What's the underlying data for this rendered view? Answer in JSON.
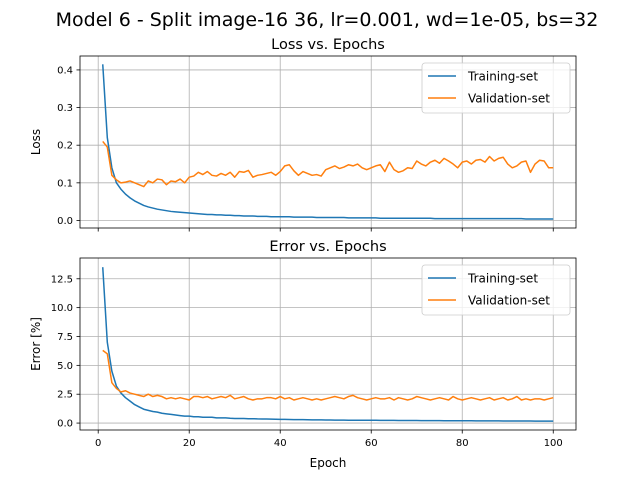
{
  "figure_title": "Model 6 - Split image-16 36, lr=0.001, wd=1e-05, bs=32",
  "chart_data": [
    {
      "type": "line",
      "title": "Loss vs. Epochs",
      "xlabel": "",
      "ylabel": "Loss",
      "xlim": [
        -4,
        105
      ],
      "ylim": [
        -0.02,
        0.437
      ],
      "xticks": [
        0,
        20,
        40,
        60,
        80,
        100
      ],
      "yticks": [
        0.0,
        0.1,
        0.2,
        0.3,
        0.4
      ],
      "ytick_labels": [
        "0.0",
        "0.1",
        "0.2",
        "0.3",
        "0.4"
      ],
      "xtick_labels_visible": false,
      "grid": true,
      "legend_position": "top-right",
      "x": [
        1,
        2,
        3,
        4,
        5,
        6,
        7,
        8,
        9,
        10,
        11,
        12,
        13,
        14,
        15,
        16,
        17,
        18,
        19,
        20,
        21,
        22,
        23,
        24,
        25,
        26,
        27,
        28,
        29,
        30,
        31,
        32,
        33,
        34,
        35,
        36,
        37,
        38,
        39,
        40,
        41,
        42,
        43,
        44,
        45,
        46,
        47,
        48,
        49,
        50,
        51,
        52,
        53,
        54,
        55,
        56,
        57,
        58,
        59,
        60,
        61,
        62,
        63,
        64,
        65,
        66,
        67,
        68,
        69,
        70,
        71,
        72,
        73,
        74,
        75,
        76,
        77,
        78,
        79,
        80,
        81,
        82,
        83,
        84,
        85,
        86,
        87,
        88,
        89,
        90,
        91,
        92,
        93,
        94,
        95,
        96,
        97,
        98,
        99,
        100
      ],
      "series": [
        {
          "name": "Training-set",
          "color": "#1f77b4",
          "values": [
            0.415,
            0.22,
            0.14,
            0.1,
            0.083,
            0.07,
            0.06,
            0.052,
            0.046,
            0.04,
            0.036,
            0.033,
            0.03,
            0.028,
            0.026,
            0.024,
            0.023,
            0.022,
            0.021,
            0.02,
            0.019,
            0.018,
            0.017,
            0.016,
            0.016,
            0.015,
            0.015,
            0.014,
            0.014,
            0.013,
            0.013,
            0.012,
            0.012,
            0.012,
            0.011,
            0.011,
            0.011,
            0.01,
            0.01,
            0.01,
            0.01,
            0.01,
            0.009,
            0.009,
            0.009,
            0.009,
            0.009,
            0.008,
            0.008,
            0.008,
            0.008,
            0.008,
            0.008,
            0.008,
            0.007,
            0.007,
            0.007,
            0.007,
            0.007,
            0.007,
            0.007,
            0.006,
            0.006,
            0.006,
            0.006,
            0.006,
            0.006,
            0.006,
            0.006,
            0.006,
            0.006,
            0.006,
            0.006,
            0.005,
            0.005,
            0.005,
            0.005,
            0.005,
            0.005,
            0.005,
            0.005,
            0.005,
            0.005,
            0.005,
            0.005,
            0.005,
            0.005,
            0.005,
            0.005,
            0.005,
            0.005,
            0.005,
            0.005,
            0.004,
            0.004,
            0.004,
            0.004,
            0.004,
            0.004,
            0.004
          ]
        },
        {
          "name": "Validation-set",
          "color": "#ff7f0e",
          "values": [
            0.21,
            0.195,
            0.12,
            0.108,
            0.1,
            0.102,
            0.105,
            0.1,
            0.095,
            0.09,
            0.105,
            0.1,
            0.11,
            0.108,
            0.095,
            0.105,
            0.103,
            0.11,
            0.1,
            0.115,
            0.118,
            0.128,
            0.122,
            0.13,
            0.12,
            0.118,
            0.125,
            0.12,
            0.128,
            0.115,
            0.13,
            0.128,
            0.133,
            0.115,
            0.12,
            0.122,
            0.125,
            0.128,
            0.12,
            0.13,
            0.145,
            0.148,
            0.132,
            0.12,
            0.13,
            0.125,
            0.12,
            0.122,
            0.118,
            0.135,
            0.14,
            0.145,
            0.138,
            0.142,
            0.148,
            0.145,
            0.15,
            0.14,
            0.135,
            0.14,
            0.145,
            0.148,
            0.13,
            0.155,
            0.135,
            0.128,
            0.132,
            0.14,
            0.138,
            0.158,
            0.15,
            0.145,
            0.155,
            0.16,
            0.152,
            0.165,
            0.158,
            0.15,
            0.14,
            0.155,
            0.158,
            0.15,
            0.16,
            0.162,
            0.155,
            0.17,
            0.158,
            0.165,
            0.168,
            0.15,
            0.14,
            0.145,
            0.155,
            0.158,
            0.128,
            0.15,
            0.16,
            0.158,
            0.14,
            0.14
          ]
        }
      ]
    },
    {
      "type": "line",
      "title": "Error vs. Epochs",
      "xlabel": "Epoch",
      "ylabel": "Error [%]",
      "xlim": [
        -4,
        105
      ],
      "ylim": [
        -0.6,
        14.3
      ],
      "xticks": [
        0,
        20,
        40,
        60,
        80,
        100
      ],
      "xtick_labels": [
        "0",
        "20",
        "40",
        "60",
        "80",
        "100"
      ],
      "yticks": [
        0.0,
        2.5,
        5.0,
        7.5,
        10.0,
        12.5
      ],
      "ytick_labels": [
        "0.0",
        "2.5",
        "5.0",
        "7.5",
        "10.0",
        "12.5"
      ],
      "grid": true,
      "legend_position": "top-right",
      "x": [
        1,
        2,
        3,
        4,
        5,
        6,
        7,
        8,
        9,
        10,
        11,
        12,
        13,
        14,
        15,
        16,
        17,
        18,
        19,
        20,
        21,
        22,
        23,
        24,
        25,
        26,
        27,
        28,
        29,
        30,
        31,
        32,
        33,
        34,
        35,
        36,
        37,
        38,
        39,
        40,
        41,
        42,
        43,
        44,
        45,
        46,
        47,
        48,
        49,
        50,
        51,
        52,
        53,
        54,
        55,
        56,
        57,
        58,
        59,
        60,
        61,
        62,
        63,
        64,
        65,
        66,
        67,
        68,
        69,
        70,
        71,
        72,
        73,
        74,
        75,
        76,
        77,
        78,
        79,
        80,
        81,
        82,
        83,
        84,
        85,
        86,
        87,
        88,
        89,
        90,
        91,
        92,
        93,
        94,
        95,
        96,
        97,
        98,
        99,
        100
      ],
      "series": [
        {
          "name": "Training-set",
          "color": "#1f77b4",
          "values": [
            13.5,
            7.0,
            4.5,
            3.2,
            2.6,
            2.2,
            1.9,
            1.6,
            1.4,
            1.2,
            1.1,
            1.0,
            0.95,
            0.85,
            0.8,
            0.75,
            0.7,
            0.65,
            0.6,
            0.6,
            0.55,
            0.55,
            0.5,
            0.5,
            0.5,
            0.45,
            0.45,
            0.45,
            0.42,
            0.4,
            0.4,
            0.4,
            0.38,
            0.38,
            0.36,
            0.35,
            0.35,
            0.34,
            0.33,
            0.32,
            0.32,
            0.31,
            0.3,
            0.3,
            0.3,
            0.29,
            0.28,
            0.28,
            0.28,
            0.27,
            0.27,
            0.26,
            0.26,
            0.26,
            0.25,
            0.25,
            0.25,
            0.24,
            0.24,
            0.24,
            0.24,
            0.23,
            0.23,
            0.23,
            0.23,
            0.22,
            0.22,
            0.22,
            0.22,
            0.22,
            0.21,
            0.21,
            0.21,
            0.21,
            0.21,
            0.2,
            0.2,
            0.2,
            0.2,
            0.2,
            0.2,
            0.2,
            0.19,
            0.19,
            0.19,
            0.19,
            0.19,
            0.19,
            0.18,
            0.18,
            0.18,
            0.18,
            0.18,
            0.18,
            0.18,
            0.17,
            0.17,
            0.17,
            0.17,
            0.17
          ]
        },
        {
          "name": "Validation-set",
          "color": "#ff7f0e",
          "values": [
            6.3,
            6.0,
            3.5,
            3.0,
            2.7,
            2.8,
            2.6,
            2.5,
            2.4,
            2.3,
            2.5,
            2.3,
            2.4,
            2.3,
            2.1,
            2.2,
            2.1,
            2.2,
            2.1,
            2.0,
            2.3,
            2.3,
            2.2,
            2.3,
            2.1,
            2.2,
            2.3,
            2.2,
            2.4,
            2.1,
            2.2,
            2.3,
            2.1,
            2.0,
            2.1,
            2.1,
            2.2,
            2.2,
            2.1,
            2.3,
            2.1,
            2.2,
            2.0,
            2.1,
            2.2,
            2.1,
            2.0,
            2.1,
            2.0,
            2.1,
            2.2,
            2.3,
            2.2,
            2.1,
            2.3,
            2.4,
            2.2,
            2.1,
            2.0,
            2.1,
            2.2,
            2.1,
            2.1,
            2.2,
            2.0,
            2.2,
            2.1,
            2.0,
            2.1,
            2.3,
            2.2,
            2.1,
            2.0,
            2.1,
            2.2,
            2.1,
            2.0,
            2.3,
            2.1,
            2.0,
            2.1,
            2.2,
            2.1,
            2.0,
            2.1,
            2.2,
            2.0,
            2.1,
            2.2,
            2.0,
            2.1,
            2.3,
            2.0,
            2.1,
            2.0,
            2.1,
            2.1,
            2.0,
            2.1,
            2.2
          ]
        }
      ]
    }
  ]
}
